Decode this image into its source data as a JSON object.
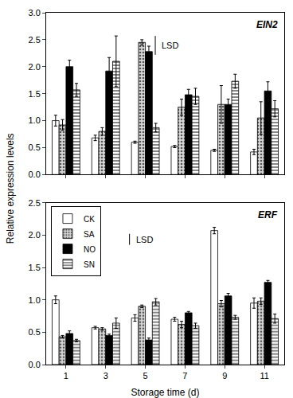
{
  "chart_data": [
    {
      "type": "bar",
      "title": "EIN2",
      "categories": [
        "1",
        "3",
        "5",
        "7",
        "9",
        "11"
      ],
      "series": [
        {
          "name": "CK",
          "color": "#ffffff",
          "marker": "solid",
          "values": [
            1.0,
            0.68,
            0.6,
            0.52,
            0.45,
            0.42
          ],
          "errors": [
            0.1,
            0.05,
            0.02,
            0.02,
            0.02,
            0.05
          ]
        },
        {
          "name": "SA",
          "color": "#d9d9d9",
          "marker": "dots",
          "values": [
            0.92,
            0.8,
            2.45,
            1.25,
            1.3,
            1.05
          ],
          "errors": [
            0.1,
            0.07,
            0.05,
            0.15,
            0.35,
            0.3
          ]
        },
        {
          "name": "NO",
          "color": "#000000",
          "marker": "solid",
          "values": [
            2.0,
            1.92,
            2.28,
            1.48,
            1.3,
            1.55
          ],
          "errors": [
            0.12,
            0.25,
            0.1,
            0.1,
            0.1,
            0.17
          ]
        },
        {
          "name": "SN",
          "color": "#ffffff",
          "marker": "hlines",
          "values": [
            1.57,
            2.1,
            0.87,
            1.45,
            1.73,
            1.22
          ],
          "errors": [
            0.12,
            0.47,
            0.08,
            0.15,
            0.13,
            0.15
          ]
        }
      ],
      "lsd": 0.35,
      "lsd_label": "LSD",
      "ylim": [
        0,
        3
      ],
      "yticks": [
        {
          "value": 0,
          "label": "0.0"
        },
        {
          "value": 0.5,
          "label": "0.5"
        },
        {
          "value": 1,
          "label": "1.0"
        },
        {
          "value": 1.5,
          "label": "1.5"
        },
        {
          "value": 2,
          "label": "2.0"
        },
        {
          "value": 2.5,
          "label": "2.5"
        },
        {
          "value": 3,
          "label": "3.0"
        }
      ],
      "tick_labels": "y",
      "grid": false
    },
    {
      "type": "bar",
      "title": "ERF",
      "y_label": "Relative expression levels",
      "x_label": "Storage time (d)",
      "categories": [
        "1",
        "3",
        "5",
        "7",
        "9",
        "11"
      ],
      "series": [
        {
          "name": "CK",
          "color": "#ffffff",
          "marker": "solid",
          "values": [
            1.0,
            0.57,
            0.72,
            0.7,
            2.07,
            0.95
          ],
          "errors": [
            0.06,
            0.02,
            0.05,
            0.03,
            0.05,
            0.08
          ]
        },
        {
          "name": "SA",
          "color": "#d9d9d9",
          "marker": "dots",
          "values": [
            0.43,
            0.55,
            0.9,
            0.62,
            0.94,
            0.98
          ],
          "errors": [
            0.02,
            0.02,
            0.02,
            0.05,
            0.05,
            0.05
          ]
        },
        {
          "name": "NO",
          "color": "#000000",
          "marker": "solid",
          "values": [
            0.48,
            0.45,
            0.38,
            0.8,
            1.06,
            1.27
          ],
          "errors": [
            0.04,
            0.02,
            0.03,
            0.02,
            0.04,
            0.03
          ]
        },
        {
          "name": "SN",
          "color": "#ffffff",
          "marker": "hlines",
          "values": [
            0.37,
            0.64,
            0.97,
            0.6,
            0.73,
            0.71
          ],
          "errors": [
            0.02,
            0.08,
            0.05,
            0.04,
            0.03,
            0.07
          ]
        }
      ],
      "lsd": 0.17,
      "lsd_label": "LSD",
      "ylim": [
        0,
        2.5
      ],
      "yticks": [
        {
          "value": 0,
          "label": "0.0"
        },
        {
          "value": 0.5,
          "label": "0.5"
        },
        {
          "value": 1,
          "label": "1.0"
        },
        {
          "value": 1.5,
          "label": "1.5"
        },
        {
          "value": 2,
          "label": "2.0"
        },
        {
          "value": 2.5,
          "label": "2.5"
        }
      ],
      "legend": "top left",
      "grid": false
    }
  ]
}
